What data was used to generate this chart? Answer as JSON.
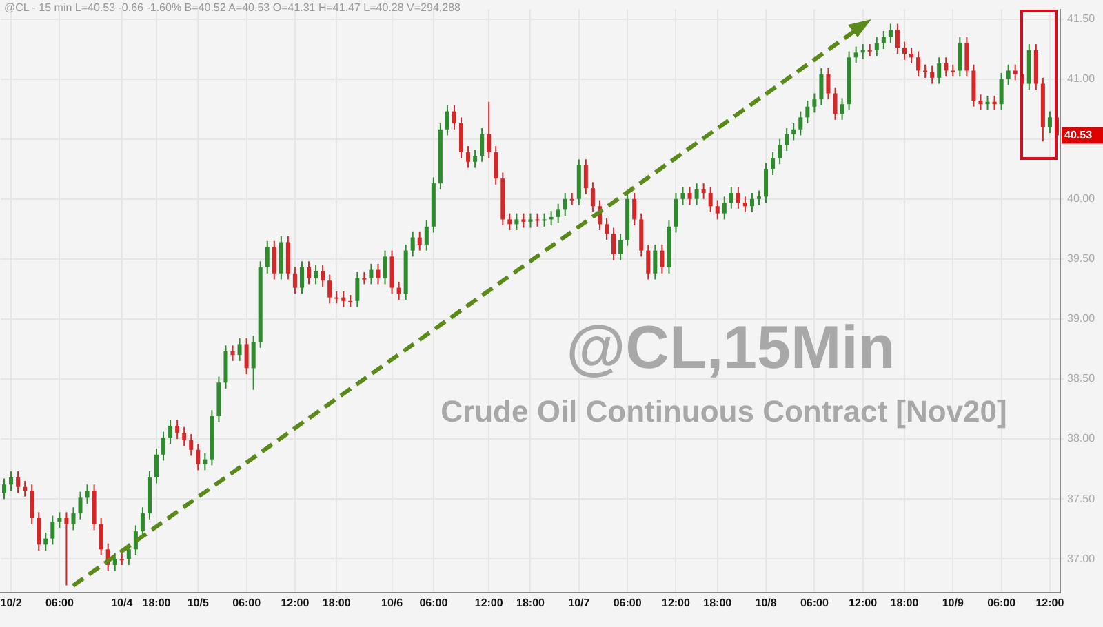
{
  "chart_data": {
    "type": "candlestick",
    "title": "@CL,15Min",
    "subtitle": "Crude Oil Continuous Contract [Nov20]",
    "annotations": [
      "@CL - 15 min  L=40.53  -0.66  -1.60%  B=40.52  A=40.53  O=41.31  H=41.47  L=40.28  V=294,288",
      "40.53"
    ],
    "categories": [
      null,
      "10/2",
      null,
      null,
      null,
      null,
      null,
      null,
      "06:00",
      null,
      null,
      null,
      null,
      null,
      null,
      null,
      null,
      "10/4",
      null,
      null,
      null,
      null,
      "18:00",
      null,
      null,
      null,
      null,
      null,
      "10/5",
      null,
      null,
      null,
      null,
      null,
      null,
      "06:00",
      null,
      null,
      null,
      null,
      null,
      null,
      "12:00",
      null,
      null,
      null,
      null,
      null,
      "18:00",
      null,
      null,
      null,
      null,
      null,
      null,
      null,
      "10/6",
      null,
      null,
      null,
      null,
      null,
      "06:00",
      null,
      null,
      null,
      null,
      null,
      null,
      null,
      "12:00",
      null,
      null,
      null,
      null,
      null,
      "18:00",
      null,
      null,
      null,
      null,
      null,
      null,
      "10/7",
      null,
      null,
      null,
      null,
      null,
      null,
      "06:00",
      null,
      null,
      null,
      null,
      null,
      null,
      "12:00",
      null,
      null,
      null,
      null,
      null,
      "18:00",
      null,
      null,
      null,
      null,
      null,
      null,
      "10/8",
      null,
      null,
      null,
      null,
      null,
      null,
      "06:00",
      null,
      null,
      null,
      null,
      null,
      null,
      "12:00",
      null,
      null,
      null,
      null,
      null,
      "18:00",
      null,
      null,
      null,
      null,
      null,
      null,
      "10/9",
      null,
      null,
      null,
      null,
      null,
      null,
      "06:00",
      null,
      null,
      null,
      null,
      null,
      null,
      "12:00",
      null
    ],
    "ohlc": [
      [
        37.55,
        37.67,
        37.5,
        37.62
      ],
      [
        37.62,
        37.73,
        37.57,
        37.68
      ],
      [
        37.68,
        37.73,
        37.55,
        37.6
      ],
      [
        37.6,
        37.65,
        37.52,
        37.57
      ],
      [
        37.57,
        37.62,
        37.29,
        37.34
      ],
      [
        37.34,
        37.39,
        37.07,
        37.12
      ],
      [
        37.12,
        37.22,
        37.07,
        37.17
      ],
      [
        37.17,
        37.36,
        37.12,
        37.31
      ],
      [
        37.31,
        37.39,
        37.26,
        37.34
      ],
      [
        37.34,
        37.39,
        36.78,
        37.29
      ],
      [
        37.29,
        37.43,
        37.24,
        37.38
      ],
      [
        37.38,
        37.56,
        37.33,
        37.51
      ],
      [
        37.51,
        37.62,
        37.46,
        37.57
      ],
      [
        37.57,
        37.62,
        37.24,
        37.29
      ],
      [
        37.29,
        37.34,
        37.03,
        37.08
      ],
      [
        37.08,
        37.13,
        36.9,
        36.95
      ],
      [
        36.95,
        37.05,
        36.9,
        37.0
      ],
      [
        37.0,
        37.05,
        36.95,
        37.0
      ],
      [
        37.0,
        37.13,
        36.95,
        37.08
      ],
      [
        37.08,
        37.28,
        37.03,
        37.23
      ],
      [
        37.23,
        37.43,
        37.18,
        37.38
      ],
      [
        37.38,
        37.73,
        37.33,
        37.68
      ],
      [
        37.68,
        37.92,
        37.63,
        37.87
      ],
      [
        37.87,
        38.06,
        37.82,
        38.01
      ],
      [
        38.01,
        38.16,
        37.96,
        38.11
      ],
      [
        38.11,
        38.16,
        38.0,
        38.05
      ],
      [
        38.05,
        38.1,
        37.94,
        37.99
      ],
      [
        37.99,
        38.04,
        37.86,
        37.91
      ],
      [
        37.91,
        37.96,
        37.74,
        37.79
      ],
      [
        37.79,
        37.88,
        37.74,
        37.83
      ],
      [
        37.83,
        38.24,
        37.78,
        38.19
      ],
      [
        38.19,
        38.52,
        38.14,
        38.47
      ],
      [
        38.47,
        38.78,
        38.42,
        38.73
      ],
      [
        38.73,
        38.78,
        38.65,
        38.7
      ],
      [
        38.7,
        38.84,
        38.65,
        38.79
      ],
      [
        38.79,
        38.84,
        38.54,
        38.59
      ],
      [
        38.59,
        38.86,
        38.41,
        38.81
      ],
      [
        38.81,
        39.48,
        38.76,
        39.43
      ],
      [
        39.43,
        39.65,
        39.38,
        39.6
      ],
      [
        39.6,
        39.65,
        39.33,
        39.38
      ],
      [
        39.38,
        39.69,
        39.33,
        39.64
      ],
      [
        39.64,
        39.69,
        39.33,
        39.38
      ],
      [
        39.38,
        39.43,
        39.21,
        39.26
      ],
      [
        39.26,
        39.48,
        39.21,
        39.43
      ],
      [
        39.43,
        39.48,
        39.29,
        39.34
      ],
      [
        39.34,
        39.45,
        39.29,
        39.4
      ],
      [
        39.4,
        39.45,
        39.27,
        39.32
      ],
      [
        39.32,
        39.37,
        39.13,
        39.18
      ],
      [
        39.18,
        39.23,
        39.13,
        39.18
      ],
      [
        39.18,
        39.23,
        39.1,
        39.15
      ],
      [
        39.15,
        39.2,
        39.1,
        39.15
      ],
      [
        39.15,
        39.39,
        39.1,
        39.34
      ],
      [
        39.34,
        39.39,
        39.29,
        39.34
      ],
      [
        39.34,
        39.46,
        39.29,
        39.41
      ],
      [
        39.41,
        39.46,
        39.29,
        39.34
      ],
      [
        39.34,
        39.57,
        39.29,
        39.52
      ],
      [
        39.52,
        39.57,
        39.21,
        39.26
      ],
      [
        39.26,
        39.31,
        39.16,
        39.21
      ],
      [
        39.21,
        39.62,
        39.16,
        39.57
      ],
      [
        39.57,
        39.73,
        39.52,
        39.68
      ],
      [
        39.68,
        39.73,
        39.57,
        39.62
      ],
      [
        39.62,
        39.82,
        39.57,
        39.77
      ],
      [
        39.77,
        40.18,
        39.72,
        40.13
      ],
      [
        40.13,
        40.63,
        40.08,
        40.58
      ],
      [
        40.58,
        40.78,
        40.53,
        40.73
      ],
      [
        40.73,
        40.78,
        40.58,
        40.63
      ],
      [
        40.63,
        40.68,
        40.34,
        40.39
      ],
      [
        40.39,
        40.44,
        40.26,
        40.31
      ],
      [
        40.31,
        40.41,
        40.26,
        40.36
      ],
      [
        40.36,
        40.59,
        40.31,
        40.54
      ],
      [
        40.54,
        40.81,
        40.34,
        40.39
      ],
      [
        40.39,
        40.44,
        40.12,
        40.17
      ],
      [
        40.17,
        40.22,
        39.78,
        39.83
      ],
      [
        39.83,
        39.88,
        39.74,
        39.79
      ],
      [
        39.79,
        39.88,
        39.74,
        39.83
      ],
      [
        39.83,
        39.88,
        39.76,
        39.81
      ],
      [
        39.81,
        39.88,
        39.76,
        39.83
      ],
      [
        39.83,
        39.88,
        39.77,
        39.82
      ],
      [
        39.82,
        39.88,
        39.77,
        39.83
      ],
      [
        39.83,
        39.9,
        39.78,
        39.85
      ],
      [
        39.85,
        39.96,
        39.8,
        39.91
      ],
      [
        39.91,
        40.05,
        39.86,
        40.0
      ],
      [
        40.0,
        40.05,
        39.95,
        40.0
      ],
      [
        40.0,
        40.33,
        39.95,
        40.28
      ],
      [
        40.28,
        40.33,
        40.04,
        40.09
      ],
      [
        40.09,
        40.14,
        39.89,
        39.94
      ],
      [
        39.94,
        39.99,
        39.74,
        39.79
      ],
      [
        39.79,
        39.84,
        39.66,
        39.71
      ],
      [
        39.71,
        39.76,
        39.49,
        39.54
      ],
      [
        39.54,
        39.71,
        39.49,
        39.66
      ],
      [
        39.66,
        40.05,
        39.61,
        40.0
      ],
      [
        40.0,
        40.05,
        39.78,
        39.83
      ],
      [
        39.83,
        39.88,
        39.52,
        39.57
      ],
      [
        39.57,
        39.62,
        39.33,
        39.38
      ],
      [
        39.38,
        39.62,
        39.33,
        39.57
      ],
      [
        39.57,
        39.62,
        39.38,
        39.43
      ],
      [
        39.43,
        39.82,
        39.38,
        39.77
      ],
      [
        39.77,
        40.05,
        39.72,
        40.0
      ],
      [
        40.0,
        40.1,
        39.95,
        40.05
      ],
      [
        40.05,
        40.1,
        39.95,
        40.0
      ],
      [
        40.0,
        40.13,
        39.95,
        40.08
      ],
      [
        40.08,
        40.13,
        40.0,
        40.05
      ],
      [
        40.05,
        40.1,
        39.89,
        39.94
      ],
      [
        39.94,
        39.99,
        39.83,
        39.88
      ],
      [
        39.88,
        40.02,
        39.83,
        39.97
      ],
      [
        39.97,
        40.1,
        39.92,
        40.05
      ],
      [
        40.05,
        40.1,
        39.92,
        39.97
      ],
      [
        39.97,
        40.02,
        39.89,
        39.94
      ],
      [
        39.94,
        40.05,
        39.89,
        40.0
      ],
      [
        40.0,
        40.07,
        39.95,
        40.02
      ],
      [
        40.02,
        40.3,
        39.97,
        40.25
      ],
      [
        40.25,
        40.39,
        40.2,
        40.34
      ],
      [
        40.34,
        40.5,
        40.29,
        40.45
      ],
      [
        40.45,
        40.59,
        40.4,
        40.54
      ],
      [
        40.54,
        40.63,
        40.49,
        40.58
      ],
      [
        40.58,
        40.73,
        40.53,
        40.68
      ],
      [
        40.68,
        40.82,
        40.63,
        40.77
      ],
      [
        40.77,
        40.88,
        40.72,
        40.83
      ],
      [
        40.83,
        41.09,
        40.78,
        41.04
      ],
      [
        41.04,
        41.09,
        40.83,
        40.88
      ],
      [
        40.88,
        40.93,
        40.66,
        40.71
      ],
      [
        40.71,
        40.84,
        40.66,
        40.79
      ],
      [
        40.79,
        41.23,
        40.74,
        41.18
      ],
      [
        41.18,
        41.27,
        41.13,
        41.22
      ],
      [
        41.22,
        41.29,
        41.17,
        41.24
      ],
      [
        41.24,
        41.29,
        41.19,
        41.24
      ],
      [
        41.24,
        41.35,
        41.19,
        41.3
      ],
      [
        41.3,
        41.4,
        41.25,
        41.35
      ],
      [
        41.35,
        41.46,
        41.3,
        41.41
      ],
      [
        41.41,
        41.46,
        41.21,
        41.26
      ],
      [
        41.26,
        41.31,
        41.16,
        41.21
      ],
      [
        41.21,
        41.26,
        41.13,
        41.18
      ],
      [
        41.18,
        41.23,
        41.02,
        41.07
      ],
      [
        41.07,
        41.12,
        41.01,
        41.06
      ],
      [
        41.06,
        41.11,
        40.96,
        41.01
      ],
      [
        41.01,
        41.18,
        40.96,
        41.13
      ],
      [
        41.13,
        41.18,
        41.02,
        41.07
      ],
      [
        41.07,
        41.12,
        41.02,
        41.07
      ],
      [
        41.07,
        41.35,
        41.02,
        41.3
      ],
      [
        41.3,
        41.35,
        41.02,
        41.07
      ],
      [
        41.07,
        41.12,
        40.77,
        40.82
      ],
      [
        40.82,
        40.87,
        40.74,
        40.79
      ],
      [
        40.79,
        40.86,
        40.74,
        40.81
      ],
      [
        40.81,
        40.86,
        40.74,
        40.79
      ],
      [
        40.79,
        41.05,
        40.74,
        41.0
      ],
      [
        41.0,
        41.12,
        40.95,
        41.07
      ],
      [
        41.07,
        41.12,
        40.99,
        41.04
      ],
      [
        41.04,
        41.09,
        40.91,
        40.96
      ],
      [
        40.96,
        41.29,
        40.91,
        41.24
      ],
      [
        41.24,
        41.29,
        40.91,
        40.96
      ],
      [
        40.96,
        41.01,
        40.48,
        40.6
      ],
      [
        40.6,
        40.73,
        40.55,
        40.68
      ],
      [
        40.68,
        40.73,
        40.48,
        40.53
      ]
    ],
    "colors": [
      "#2e8b2e",
      "#2e8b2e",
      "#d62728",
      "#d62728",
      "#d62728",
      "#d62728",
      "#2e8b2e",
      "#2e8b2e",
      "#2e8b2e",
      "#d62728",
      "#2e8b2e",
      "#2e8b2e",
      "#2e8b2e",
      "#d62728",
      "#d62728",
      "#d62728",
      "#2e8b2e",
      "#d62728",
      "#2e8b2e",
      "#2e8b2e",
      "#2e8b2e",
      "#2e8b2e",
      "#2e8b2e",
      "#2e8b2e",
      "#2e8b2e",
      "#d62728",
      "#d62728",
      "#d62728",
      "#d62728",
      "#2e8b2e",
      "#2e8b2e",
      "#2e8b2e",
      "#2e8b2e",
      "#d62728",
      "#2e8b2e",
      "#d62728",
      "#2e8b2e",
      "#2e8b2e",
      "#2e8b2e",
      "#d62728",
      "#2e8b2e",
      "#d62728",
      "#d62728",
      "#2e8b2e",
      "#d62728",
      "#2e8b2e",
      "#d62728",
      "#d62728",
      "#d62728",
      "#d62728",
      "#d62728",
      "#2e8b2e",
      "#d62728",
      "#2e8b2e",
      "#d62728",
      "#2e8b2e",
      "#d62728",
      "#d62728",
      "#2e8b2e",
      "#2e8b2e",
      "#d62728",
      "#2e8b2e",
      "#2e8b2e",
      "#2e8b2e",
      "#2e8b2e",
      "#d62728",
      "#d62728",
      "#d62728",
      "#2e8b2e",
      "#2e8b2e",
      "#d62728",
      "#d62728",
      "#d62728",
      "#d62728",
      "#2e8b2e",
      "#d62728",
      "#2e8b2e",
      "#d62728",
      "#2e8b2e",
      "#2e8b2e",
      "#2e8b2e",
      "#2e8b2e",
      "#d62728",
      "#2e8b2e",
      "#d62728",
      "#d62728",
      "#d62728",
      "#d62728",
      "#d62728",
      "#2e8b2e",
      "#2e8b2e",
      "#d62728",
      "#d62728",
      "#d62728",
      "#2e8b2e",
      "#d62728",
      "#2e8b2e",
      "#2e8b2e",
      "#2e8b2e",
      "#d62728",
      "#2e8b2e",
      "#d62728",
      "#d62728",
      "#d62728",
      "#2e8b2e",
      "#2e8b2e",
      "#d62728",
      "#d62728",
      "#2e8b2e",
      "#2e8b2e",
      "#2e8b2e",
      "#2e8b2e",
      "#2e8b2e",
      "#2e8b2e",
      "#2e8b2e",
      "#2e8b2e",
      "#2e8b2e",
      "#2e8b2e",
      "#2e8b2e",
      "#d62728",
      "#d62728",
      "#2e8b2e",
      "#2e8b2e",
      "#2e8b2e",
      "#2e8b2e",
      "#d62728",
      "#2e8b2e",
      "#2e8b2e",
      "#2e8b2e",
      "#d62728",
      "#d62728",
      "#d62728",
      "#d62728",
      "#d62728",
      "#d62728",
      "#2e8b2e",
      "#d62728",
      "#d62728",
      "#2e8b2e",
      "#d62728",
      "#d62728",
      "#d62728",
      "#2e8b2e",
      "#d62728",
      "#2e8b2e",
      "#2e8b2e",
      "#d62728",
      "#d62728",
      "#2e8b2e",
      "#d62728",
      "#d62728",
      "#2e8b2e",
      "#d62728"
    ],
    "ylim": [
      36.72,
      41.58
    ],
    "yticks": [
      {
        "value": 37,
        "label": "37.00"
      },
      {
        "value": 37.5,
        "label": "37.50"
      },
      {
        "value": 38,
        "label": "38.00"
      },
      {
        "value": 38.5,
        "label": "38.50"
      },
      {
        "value": 39,
        "label": "39.00"
      },
      {
        "value": 39.5,
        "label": "39.50"
      },
      {
        "value": 40,
        "label": "40.00"
      },
      {
        "value": 40.5,
        "label": null
      },
      {
        "value": 41,
        "label": "41.00"
      },
      {
        "value": 41.5,
        "label": "41.50"
      }
    ],
    "grid": true
  }
}
